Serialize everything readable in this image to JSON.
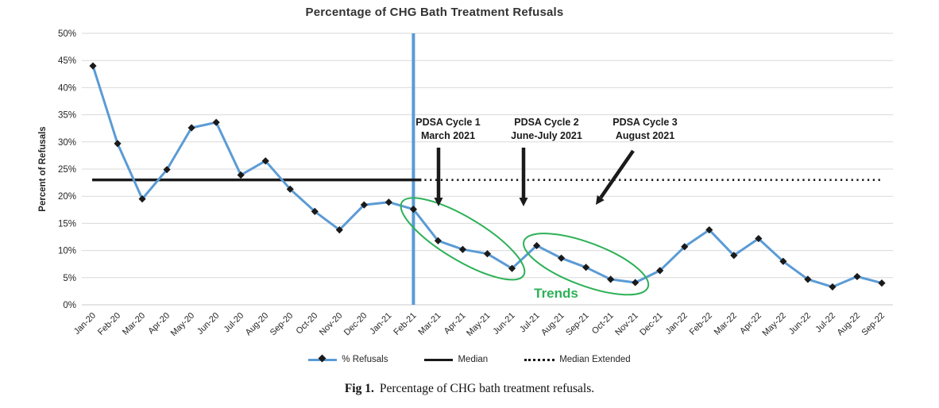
{
  "figure": {
    "caption_label": "Fig 1.",
    "caption_text": "Percentage of CHG bath treatment refusals."
  },
  "chart_data": {
    "type": "line",
    "title": "Percentage of CHG Bath Treatment Refusals",
    "xlabel": "",
    "ylabel": "Percent of Refusals",
    "ylim": [
      0,
      50
    ],
    "ytick_step": 5,
    "ytick_labels": [
      "0%",
      "5%",
      "10%",
      "15%",
      "20%",
      "25%",
      "30%",
      "35%",
      "40%",
      "45%",
      "50%"
    ],
    "grid": "horizontal",
    "legend_position": "bottom",
    "categories": [
      "Jan-20",
      "Feb-20",
      "Mar-20",
      "Apr-20",
      "May-20",
      "Jun-20",
      "Jul-20",
      "Aug-20",
      "Sep-20",
      "Oct-20",
      "Nov-20",
      "Dec-20",
      "Jan-21",
      "Feb-21",
      "Mar-21",
      "Apr-21",
      "May-21",
      "Jun-21",
      "Jul-21",
      "Aug-21",
      "Sep-21",
      "Oct-21",
      "Nov-21",
      "Dec-21",
      "Jan-22",
      "Feb-22",
      "Mar-22",
      "Apr-22",
      "May-22",
      "Jun-22",
      "Jul-22",
      "Aug-22",
      "Sep-22"
    ],
    "series": [
      {
        "name": "% Refusals",
        "marker": "diamond",
        "values": [
          44.0,
          29.7,
          19.5,
          24.9,
          32.6,
          33.6,
          23.9,
          26.5,
          21.3,
          17.2,
          13.8,
          18.4,
          18.9,
          17.6,
          11.8,
          10.2,
          9.4,
          6.7,
          10.9,
          8.6,
          6.9,
          4.7,
          4.1,
          6.3,
          10.7,
          13.8,
          9.1,
          12.2,
          8.0,
          4.7,
          3.3,
          5.2,
          4.0
        ]
      }
    ],
    "median": {
      "name": "Median",
      "value": 23,
      "solid_from": "Jan-20",
      "solid_to": "Feb-21"
    },
    "median_extended": {
      "name": "Median Extended",
      "value": 23,
      "from": "Feb-21",
      "to": "Sep-22"
    },
    "vline_at": "Feb-21",
    "pdsa_annotations": [
      {
        "title": "PDSA Cycle 1",
        "subtitle": "March 2021",
        "points_at": "Mar-21"
      },
      {
        "title": "PDSA Cycle 2",
        "subtitle": "June-July 2021",
        "points_at": "Jun-21"
      },
      {
        "title": "PDSA Cycle 3",
        "subtitle": "August 2021",
        "points_at": "Sep-21"
      }
    ],
    "trend_ellipses": [
      {
        "from": "Feb-21",
        "to": "Jun-21"
      },
      {
        "from": "Jul-21",
        "to": "Nov-21"
      }
    ],
    "trends_label": "Trends",
    "legend": [
      {
        "label": "% Refusals",
        "swatch": "line-diamond"
      },
      {
        "label": "Median",
        "swatch": "solid-line"
      },
      {
        "label": "Median Extended",
        "swatch": "dotted-line"
      }
    ],
    "colors": {
      "series": "#5b9bd5",
      "marker": "#1a1a1a",
      "median": "#1a1a1a",
      "gridline": "#d9d9d9",
      "axis_text": "#262626",
      "vline": "#5b9bd5",
      "annotation_green": "#2db157"
    }
  }
}
